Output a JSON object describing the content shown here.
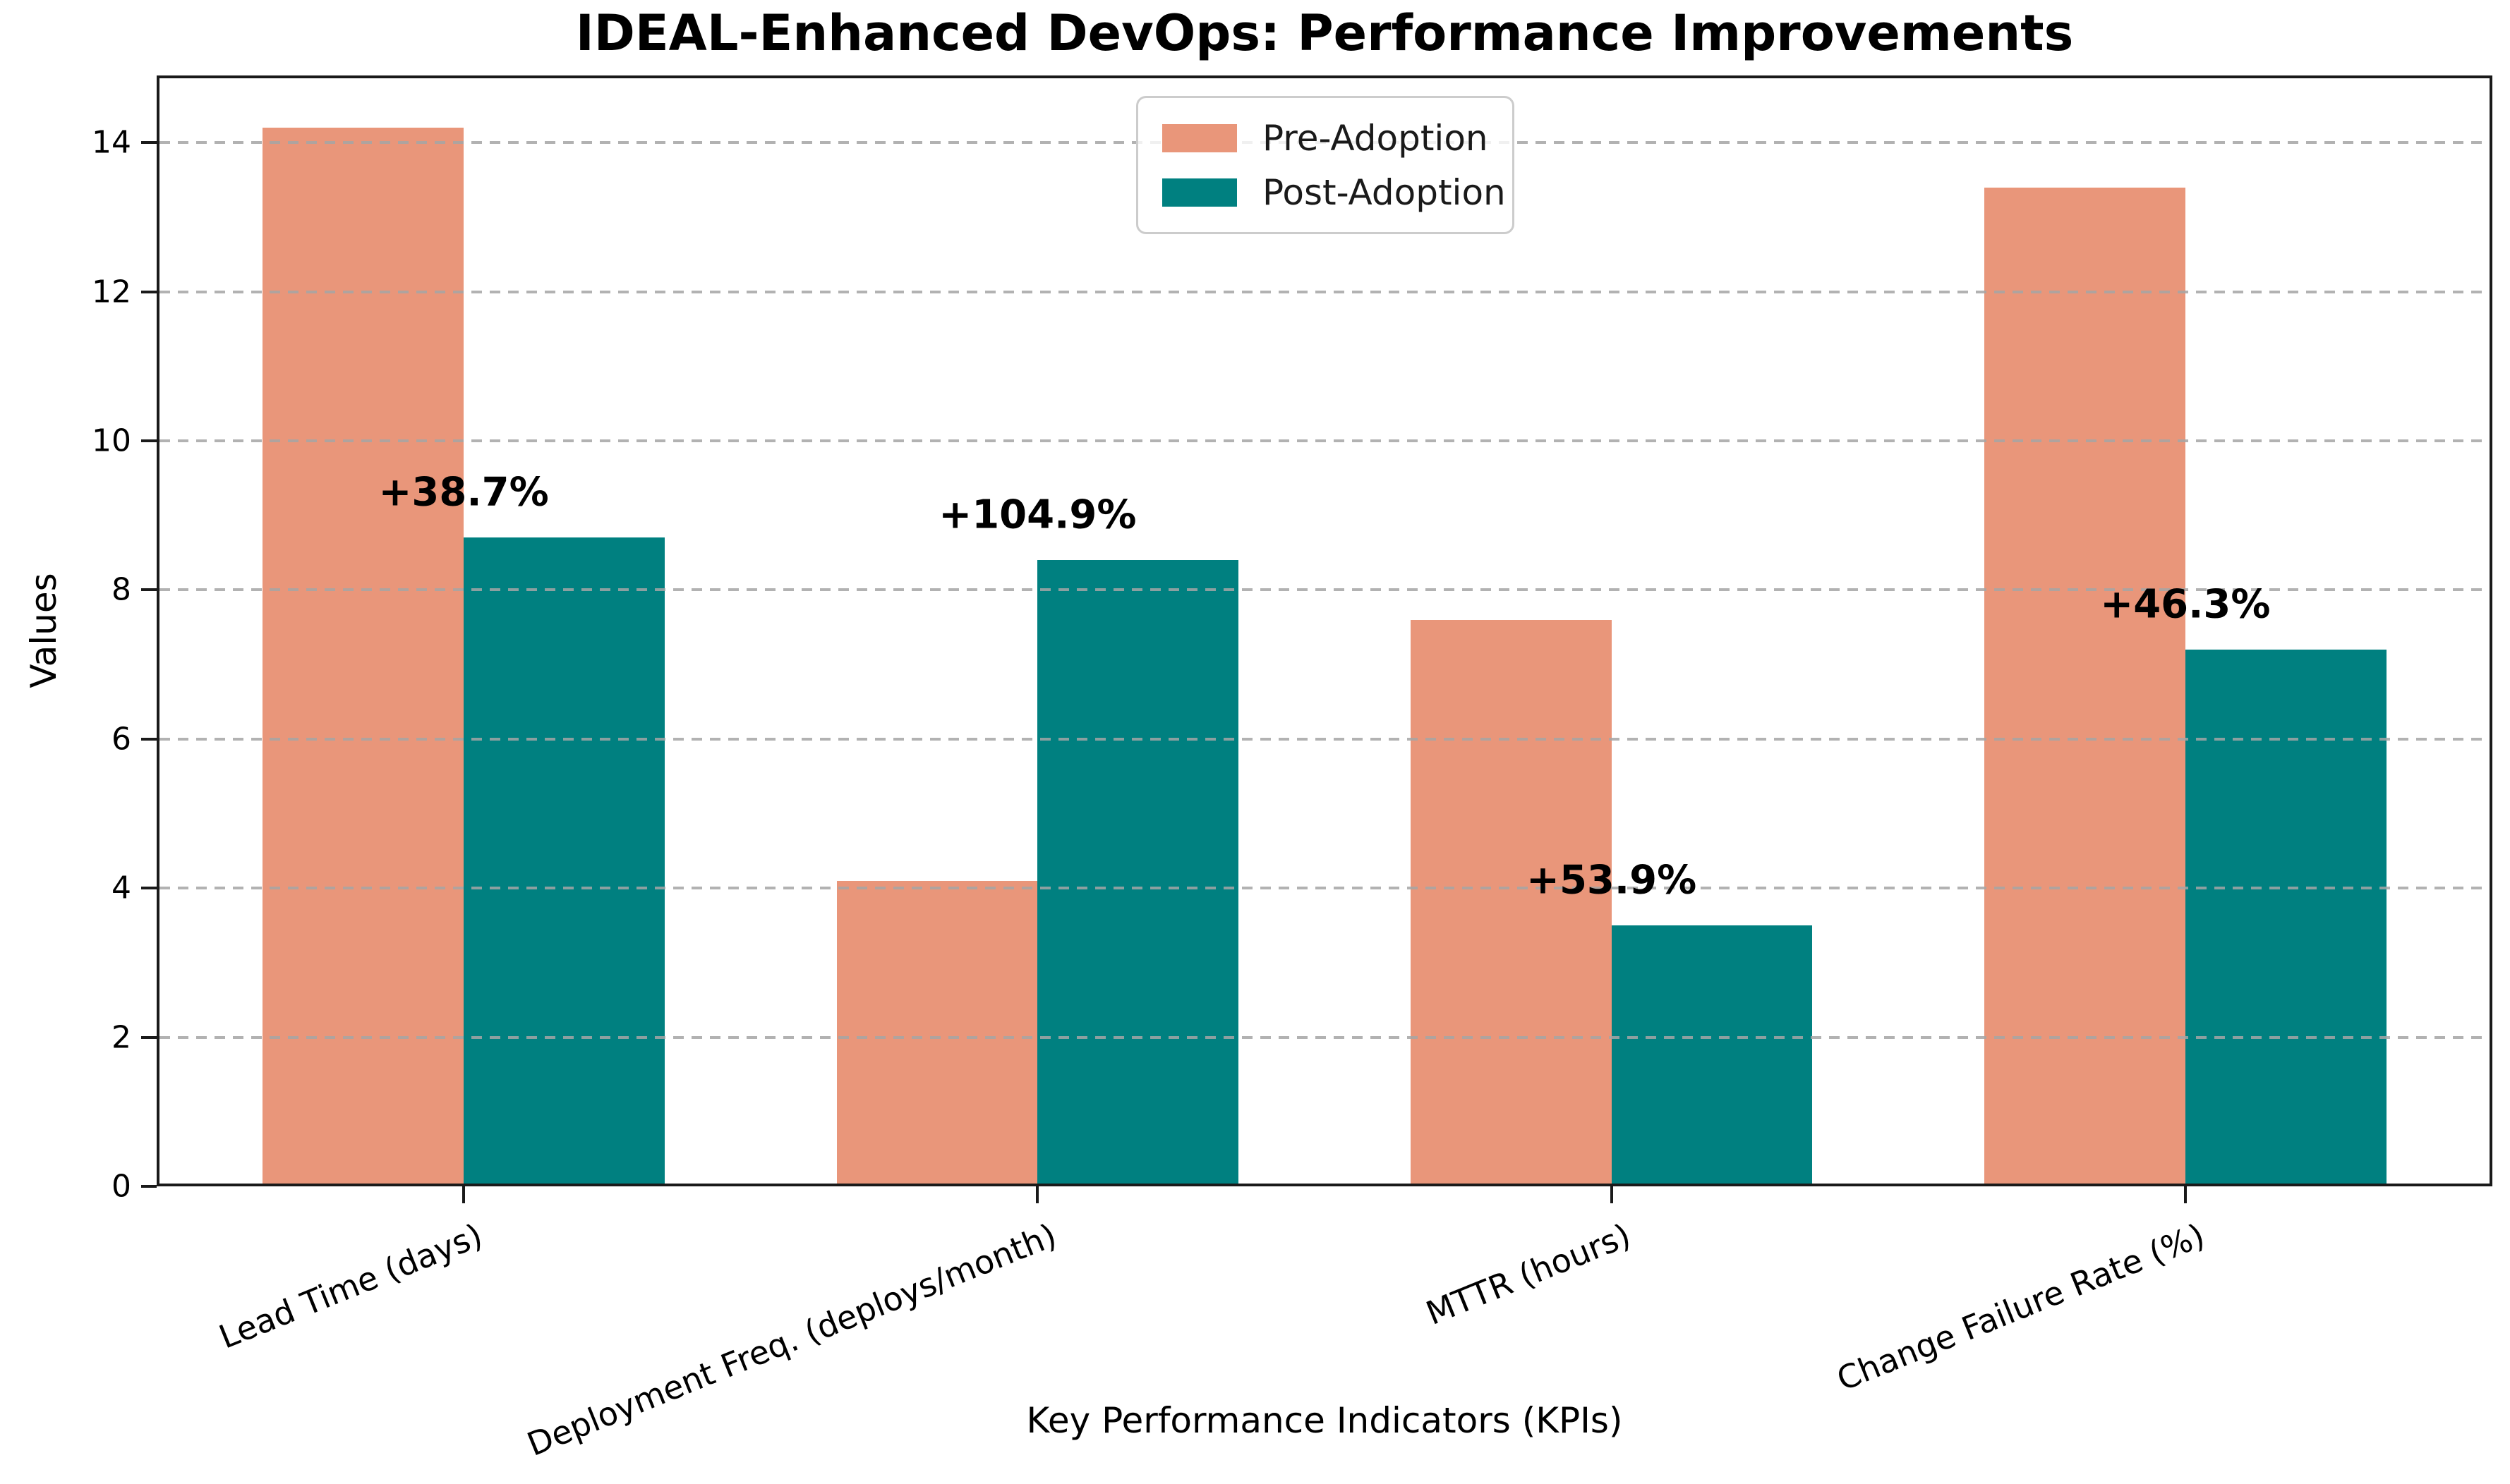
{
  "chart_data": {
    "type": "bar",
    "title": "IDEAL-Enhanced DevOps: Performance Improvements",
    "xlabel": "Key Performance Indicators (KPIs)",
    "ylabel": "Values",
    "categories": [
      "Lead Time (days)",
      "Deployment Freq. (deploys/month)",
      "MTTR (hours)",
      "Change Failure Rate (%)"
    ],
    "series": [
      {
        "name": "Pre-Adoption",
        "color": "#E9967A",
        "values": [
          14.2,
          4.1,
          7.6,
          13.4
        ]
      },
      {
        "name": "Post-Adoption",
        "color": "#008080",
        "values": [
          8.7,
          8.4,
          3.5,
          7.2
        ]
      }
    ],
    "annotations": [
      {
        "label": "+38.7%",
        "category_index": 0
      },
      {
        "label": "+104.9%",
        "category_index": 1
      },
      {
        "label": "+53.9%",
        "category_index": 2
      },
      {
        "label": "+46.3%",
        "category_index": 3
      }
    ],
    "yticks": [
      0,
      2,
      4,
      6,
      8,
      10,
      12,
      14
    ],
    "ylim": [
      0,
      14.9
    ],
    "grid": "horizontal-dashed",
    "legend": {
      "position": "upper-center"
    },
    "colors": {
      "axis": "#1a1a1a",
      "grid": "#a5a5a5",
      "text": "#000000"
    }
  }
}
